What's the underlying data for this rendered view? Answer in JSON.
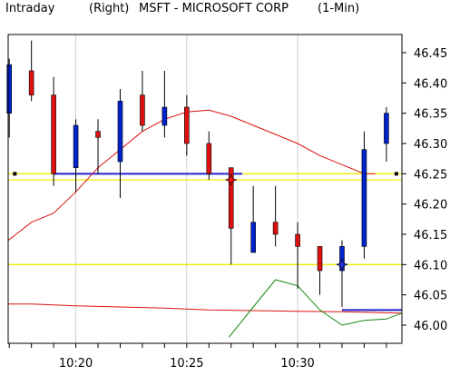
{
  "header": {
    "mode": "Intraday",
    "axis_side": "(Right)",
    "symbol": "MSFT - MICROSOFT CORP",
    "interval": "(1-Min)"
  },
  "chart_data": {
    "type": "candlestick",
    "xlabel": "",
    "ylabel": "",
    "axis_side": "right",
    "ylim": [
      45.97,
      46.48
    ],
    "y_ticks": [
      "46.45",
      "46.40",
      "46.35",
      "46.30",
      "46.25",
      "46.20",
      "46.15",
      "46.10",
      "46.05",
      "46.00"
    ],
    "x_ticks": [
      {
        "label": "10:20",
        "minute": 20
      },
      {
        "label": "10:25",
        "minute": 25
      },
      {
        "label": "10:30",
        "minute": 30
      }
    ],
    "x_range_minutes": [
      16.95,
      34.7
    ],
    "colors": {
      "up": "#0022cc",
      "down": "#dd1111",
      "red_line": "#dd1111",
      "green_line": "#118811",
      "horizontal_yellow": "#f2ea00",
      "horizontal_blue": "#2222cc"
    },
    "candles": [
      {
        "time": "10:17",
        "open": 46.35,
        "high": 46.44,
        "low": 46.31,
        "close": 46.43
      },
      {
        "time": "10:18",
        "open": 46.42,
        "high": 46.47,
        "low": 46.37,
        "close": 46.38
      },
      {
        "time": "10:19",
        "open": 46.38,
        "high": 46.41,
        "low": 46.23,
        "close": 46.25
      },
      {
        "time": "10:20",
        "open": 46.26,
        "high": 46.34,
        "low": 46.22,
        "close": 46.33
      },
      {
        "time": "10:21",
        "open": 46.32,
        "high": 46.34,
        "low": 46.25,
        "close": 46.31
      },
      {
        "time": "10:22",
        "open": 46.27,
        "high": 46.39,
        "low": 46.21,
        "close": 46.37
      },
      {
        "time": "10:23",
        "open": 46.38,
        "high": 46.42,
        "low": 46.32,
        "close": 46.33
      },
      {
        "time": "10:24",
        "open": 46.33,
        "high": 46.42,
        "low": 46.31,
        "close": 46.36
      },
      {
        "time": "10:25",
        "open": 46.36,
        "high": 46.38,
        "low": 46.28,
        "close": 46.3
      },
      {
        "time": "10:26",
        "open": 46.3,
        "high": 46.32,
        "low": 46.24,
        "close": 46.25
      },
      {
        "time": "10:27",
        "open": 46.26,
        "high": 46.26,
        "low": 46.1,
        "close": 46.16
      },
      {
        "time": "10:28",
        "open": 46.12,
        "high": 46.23,
        "low": 46.12,
        "close": 46.17
      },
      {
        "time": "10:29",
        "open": 46.17,
        "high": 46.23,
        "low": 46.13,
        "close": 46.15
      },
      {
        "time": "10:30",
        "open": 46.15,
        "high": 46.17,
        "low": 46.06,
        "close": 46.13
      },
      {
        "time": "10:31",
        "open": 46.13,
        "high": 46.13,
        "low": 46.05,
        "close": 46.09
      },
      {
        "time": "10:32",
        "open": 46.09,
        "high": 46.14,
        "low": 46.03,
        "close": 46.13
      },
      {
        "time": "10:33",
        "open": 46.13,
        "high": 46.32,
        "low": 46.11,
        "close": 46.29
      },
      {
        "time": "10:34",
        "open": 46.3,
        "high": 46.36,
        "low": 46.27,
        "close": 46.35
      }
    ],
    "red_line": [
      {
        "minute": 16.95,
        "value": 46.14
      },
      {
        "minute": 18.0,
        "value": 46.17
      },
      {
        "minute": 19.0,
        "value": 46.185
      },
      {
        "minute": 20.0,
        "value": 46.22
      },
      {
        "minute": 21.0,
        "value": 46.26
      },
      {
        "minute": 22.0,
        "value": 46.29
      },
      {
        "minute": 23.0,
        "value": 46.32
      },
      {
        "minute": 24.0,
        "value": 46.34
      },
      {
        "minute": 25.0,
        "value": 46.352
      },
      {
        "minute": 26.0,
        "value": 46.355
      },
      {
        "minute": 27.0,
        "value": 46.345
      },
      {
        "minute": 28.0,
        "value": 46.33
      },
      {
        "minute": 29.0,
        "value": 46.315
      },
      {
        "minute": 30.0,
        "value": 46.3
      },
      {
        "minute": 31.0,
        "value": 46.28
      },
      {
        "minute": 32.0,
        "value": 46.265
      },
      {
        "minute": 33.0,
        "value": 46.25
      },
      {
        "minute": 33.5,
        "value": 46.25
      }
    ],
    "low_red_line": [
      {
        "minute": 16.95,
        "value": 46.035
      },
      {
        "minute": 18.0,
        "value": 46.035
      },
      {
        "minute": 20.0,
        "value": 46.032
      },
      {
        "minute": 22.0,
        "value": 46.03
      },
      {
        "minute": 24.0,
        "value": 46.028
      },
      {
        "minute": 26.0,
        "value": 46.025
      },
      {
        "minute": 28.0,
        "value": 46.024
      },
      {
        "minute": 30.0,
        "value": 46.023
      },
      {
        "minute": 32.0,
        "value": 46.022
      },
      {
        "minute": 34.7,
        "value": 46.02
      }
    ],
    "green_line": [
      {
        "minute": 26.9,
        "value": 45.98
      },
      {
        "minute": 28.0,
        "value": 46.03
      },
      {
        "minute": 29.0,
        "value": 46.075
      },
      {
        "minute": 30.0,
        "value": 46.065
      },
      {
        "minute": 31.0,
        "value": 46.025
      },
      {
        "minute": 32.0,
        "value": 46.0
      },
      {
        "minute": 33.0,
        "value": 46.008
      },
      {
        "minute": 34.0,
        "value": 46.01
      },
      {
        "minute": 34.7,
        "value": 46.02
      }
    ],
    "horizontal_lines": [
      {
        "color": "yellow",
        "value": 46.25,
        "from_minute": 16.95,
        "to_minute": 34.7
      },
      {
        "color": "yellow",
        "value": 46.24,
        "from_minute": 16.95,
        "to_minute": 34.7
      },
      {
        "color": "yellow",
        "value": 46.1,
        "from_minute": 16.95,
        "to_minute": 34.7
      },
      {
        "color": "blue",
        "value": 46.25,
        "from_minute": 19.0,
        "to_minute": 27.5
      },
      {
        "color": "blue",
        "value": 46.025,
        "from_minute": 32.0,
        "to_minute": 34.7
      }
    ],
    "markers": [
      {
        "kind": "star",
        "color": "red",
        "minute": 27.0,
        "value": 46.24
      },
      {
        "kind": "star",
        "color": "blue",
        "minute": 32.0,
        "value": 46.1
      },
      {
        "kind": "dot",
        "color": "black",
        "minute": 17.25,
        "value": 46.25
      },
      {
        "kind": "dot",
        "color": "black",
        "minute": 34.45,
        "value": 46.25
      }
    ]
  }
}
